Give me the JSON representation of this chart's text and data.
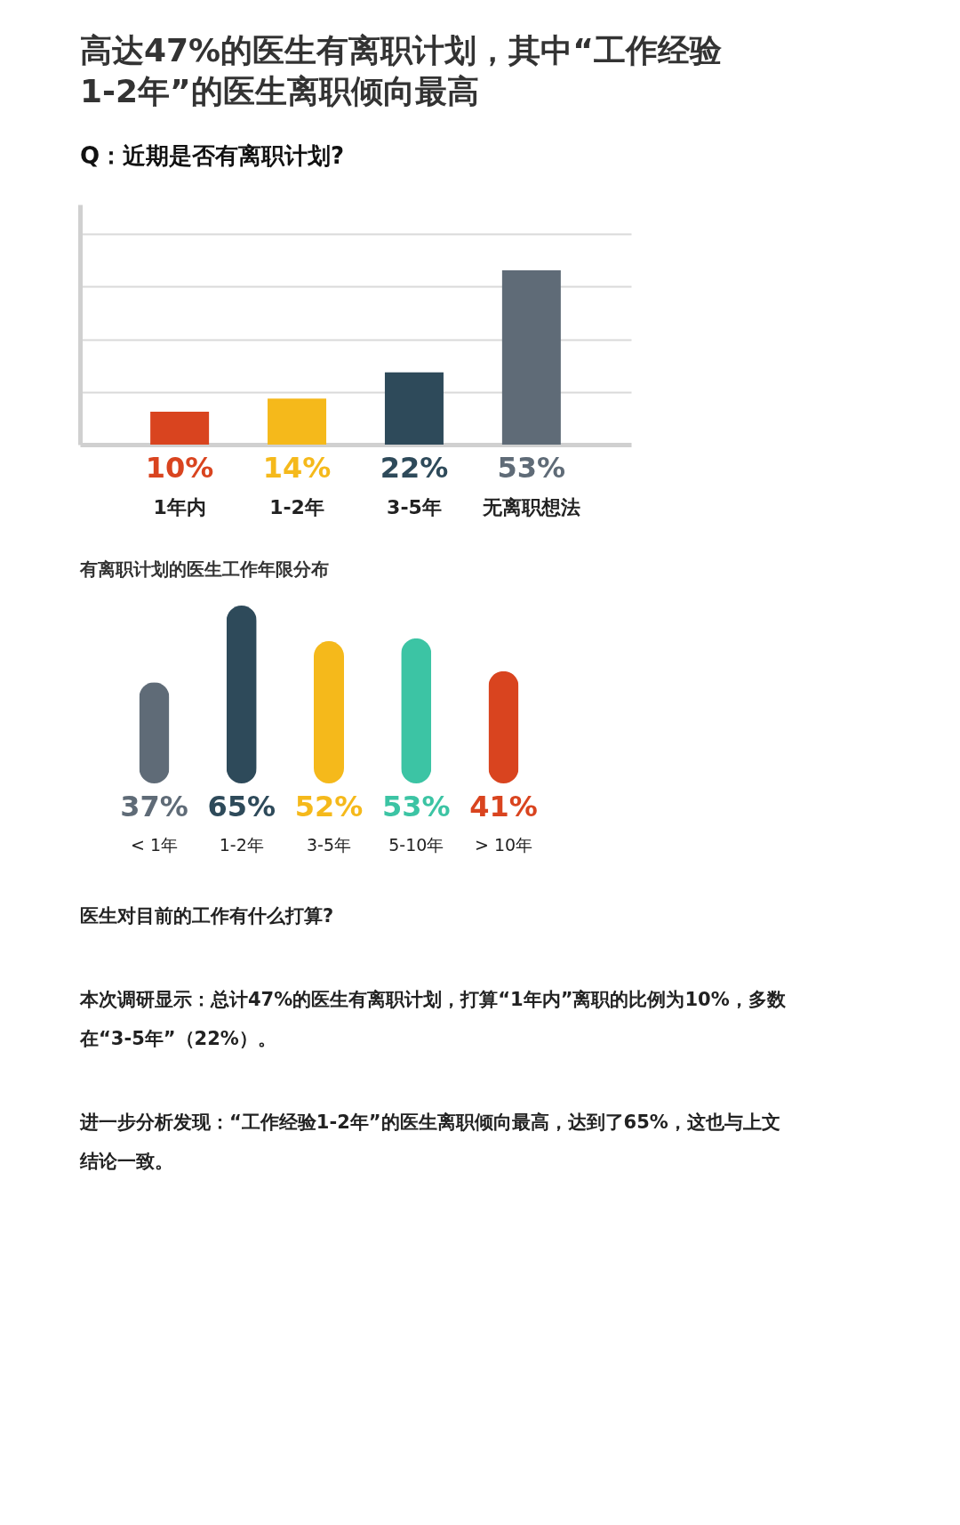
{
  "chart_data": [
    {
      "type": "bar",
      "title": "高达47%的医生有离职计划，其中“工作经验1-2年”的医生离职倾向最高",
      "subtitle": "Q：近期是否有离职计划?",
      "categories": [
        "1年内",
        "1-2年",
        "3-5年",
        "无离职想法"
      ],
      "values": [
        10,
        14,
        22,
        53
      ],
      "colors": [
        "#d9441f",
        "#f5b91b",
        "#2e4a5a",
        "#5f6b77"
      ],
      "value_labels": [
        "10%",
        "14%",
        "22%",
        "53%"
      ],
      "ylim": [
        0,
        73
      ],
      "yticks": [
        {
          "value": 16,
          "label": null
        },
        {
          "value": 32,
          "label": null
        },
        {
          "value": 48,
          "label": null
        },
        {
          "value": 64,
          "label": null
        }
      ],
      "grid": "y",
      "tick_labels": "x"
    },
    {
      "type": "bar",
      "title": "有离职计划的医生工作年限分布",
      "categories": [
        "< 1年",
        "1-2年",
        "3-5年",
        "5-10年",
        "> 10年"
      ],
      "values": [
        37,
        65,
        52,
        53,
        41
      ],
      "colors": [
        "#5f6b77",
        "#2e4a5a",
        "#f5b91b",
        "#3cc4a4",
        "#d9441f"
      ],
      "value_labels": [
        "37%",
        "65%",
        "52%",
        "53%",
        "41%"
      ],
      "tick_labels": "x",
      "annotations": [
        "医生对目前的工作有什么打算?",
        "本次调研显示：总计47%的医生有离职计划，打算“1年内”离职的比例为10%，多数在“3-5年”（22%）。",
        "进一步分析发现：“工作经验1-2年”的医生离职倾向最高，达到了65%，这也与上文结论一致。"
      ]
    }
  ]
}
